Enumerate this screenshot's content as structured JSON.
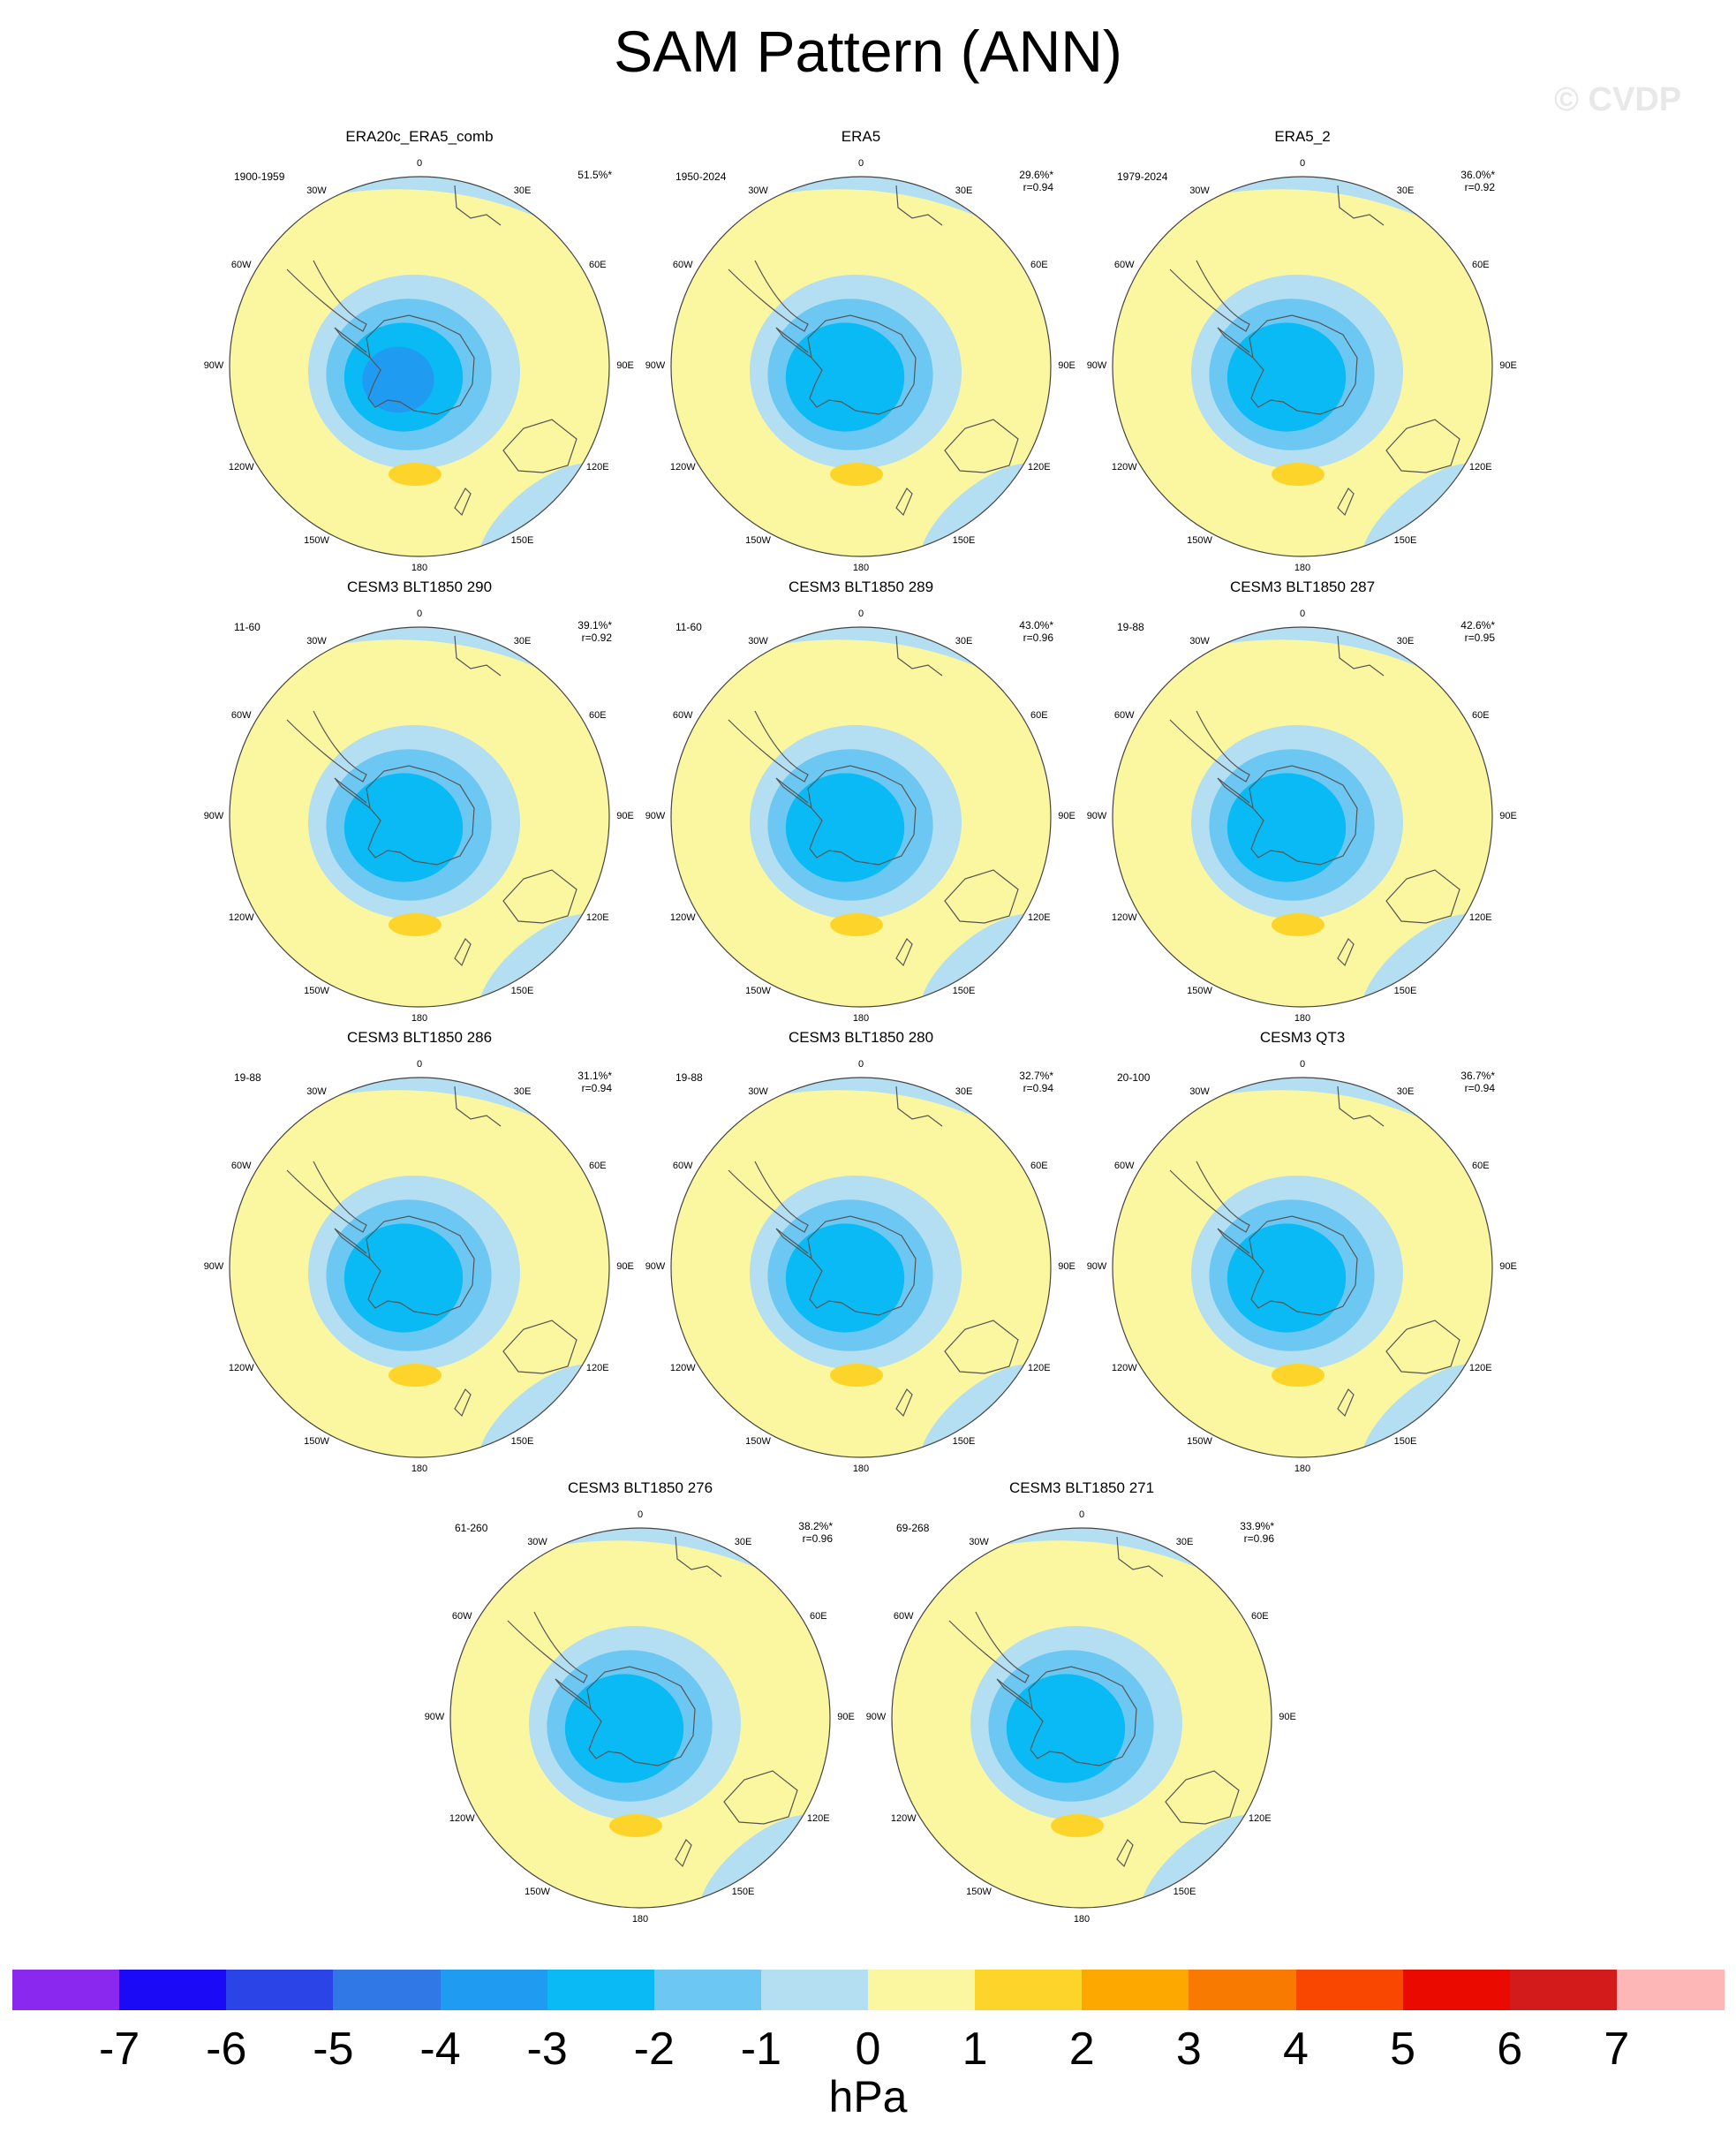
{
  "title": "SAM Pattern (ANN)",
  "watermark": "© CVDP",
  "colorbar": {
    "unit": "hPa",
    "ticks": [
      "-7",
      "-6",
      "-5",
      "-4",
      "-3",
      "-2",
      "-1",
      "0",
      "1",
      "2",
      "3",
      "4",
      "5",
      "6",
      "7"
    ],
    "colors": [
      "#8a28f0",
      "#1a0af5",
      "#2a44e8",
      "#2f78e6",
      "#1f9cf2",
      "#0abaf4",
      "#6cc8f2",
      "#b4dff2",
      "#fbf6a0",
      "#fdd52a",
      "#fca800",
      "#f97a00",
      "#f94600",
      "#ea0a00",
      "#d31b1b",
      "#fdb7b7"
    ]
  },
  "lon_labels": {
    "t": "0",
    "tr": "30E",
    "rt": "60E",
    "r": "90E",
    "rb": "120E",
    "br": "150E",
    "b": "180",
    "bl": "150W",
    "lb": "120W",
    "l": "90W",
    "lt": "60W",
    "tl": "30W"
  },
  "chart_data": [
    {
      "type": "heatmap",
      "title": "ERA20c_ERA5_comb",
      "years": "1900-1959",
      "pct": "51.5%*",
      "r": "",
      "min_hpa": -4
    },
    {
      "type": "heatmap",
      "title": "ERA5",
      "years": "1950-2024",
      "pct": "29.6%*",
      "r": "r=0.94",
      "min_hpa": -3
    },
    {
      "type": "heatmap",
      "title": "ERA5_2",
      "years": "1979-2024",
      "pct": "36.0%*",
      "r": "r=0.92",
      "min_hpa": -3
    },
    {
      "type": "heatmap",
      "title": "CESM3 BLT1850 290",
      "years": "11-60",
      "pct": "39.1%*",
      "r": "r=0.92",
      "min_hpa": -3
    },
    {
      "type": "heatmap",
      "title": "CESM3 BLT1850 289",
      "years": "11-60",
      "pct": "43.0%*",
      "r": "r=0.96",
      "min_hpa": -3
    },
    {
      "type": "heatmap",
      "title": "CESM3 BLT1850 287",
      "years": "19-88",
      "pct": "42.6%*",
      "r": "r=0.95",
      "min_hpa": -3
    },
    {
      "type": "heatmap",
      "title": "CESM3 BLT1850 286",
      "years": "19-88",
      "pct": "31.1%*",
      "r": "r=0.94",
      "min_hpa": -3
    },
    {
      "type": "heatmap",
      "title": "CESM3 BLT1850 280",
      "years": "19-88",
      "pct": "32.7%*",
      "r": "r=0.94",
      "min_hpa": -3
    },
    {
      "type": "heatmap",
      "title": "CESM3 QT3",
      "years": "20-100",
      "pct": "36.7%*",
      "r": "r=0.94",
      "min_hpa": -3
    },
    {
      "type": "heatmap",
      "title": "CESM3 BLT1850 276",
      "years": "61-260",
      "pct": "38.2%*",
      "r": "r=0.96",
      "min_hpa": -3
    },
    {
      "type": "heatmap",
      "title": "CESM3 BLT1850 271",
      "years": "69-268",
      "pct": "33.9%*",
      "r": "r=0.96",
      "min_hpa": -3
    }
  ]
}
